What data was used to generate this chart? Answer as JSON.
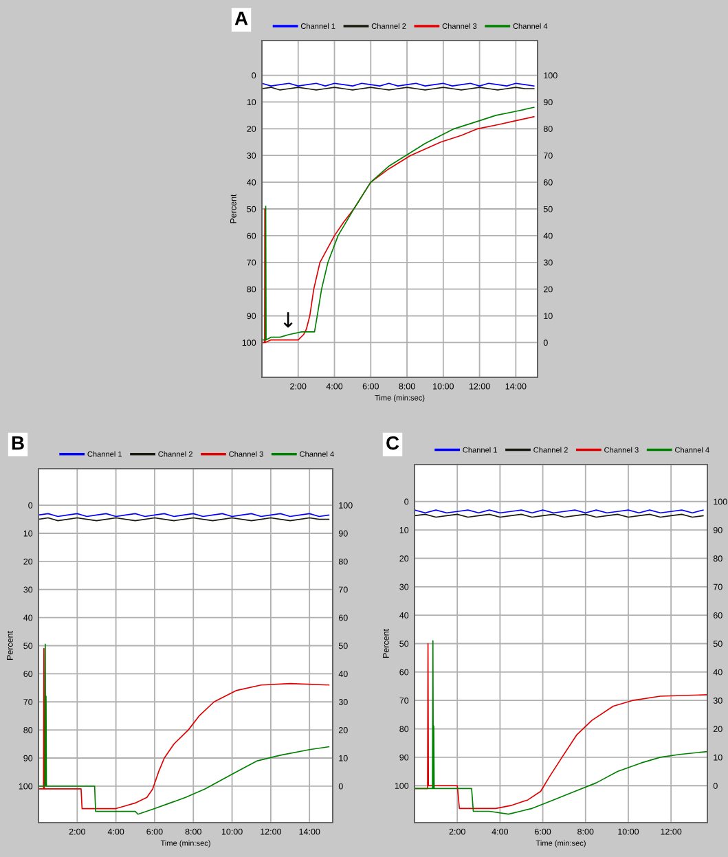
{
  "chart_data": [
    {
      "type": "line",
      "title": "A",
      "xlabel": "Time (min:sec)",
      "ylabel": "Percent",
      "legend": "top",
      "grid": true,
      "line_style": "solid",
      "xlim": [
        0,
        15.2
      ],
      "xticks": [
        {
          "value": 2,
          "label": "2:00"
        },
        {
          "value": 4,
          "label": "4:00"
        },
        {
          "value": 6,
          "label": "6:00"
        },
        {
          "value": 8,
          "label": "8:00"
        },
        {
          "value": 10,
          "label": "10:00"
        },
        {
          "value": 12,
          "label": "12:00"
        },
        {
          "value": 14,
          "label": "14:00"
        }
      ],
      "ylim": [
        113,
        -13
      ],
      "yticks": [
        0,
        10,
        20,
        30,
        40,
        50,
        60,
        70,
        80,
        90,
        100
      ],
      "y2lim": [
        -13,
        113
      ],
      "y2ticks": [
        0,
        10,
        20,
        30,
        40,
        50,
        60,
        70,
        80,
        90,
        100
      ],
      "x": [
        0,
        0.5,
        1,
        1.5,
        2,
        2.5,
        3,
        3.5,
        4,
        4.5,
        5,
        5.5,
        6,
        6.5,
        7,
        7.5,
        8,
        8.5,
        9,
        9.5,
        10,
        10.5,
        11,
        11.5,
        12,
        12.5,
        13,
        13.5,
        14,
        14.5,
        15
      ],
      "annotations": [
        "↓"
      ],
      "series": [
        {
          "name": "Channel 1",
          "color": "#0000ff",
          "values": [
            3,
            4,
            3.5,
            3,
            4,
            3.5,
            3,
            4,
            3,
            3.5,
            4,
            3,
            3.5,
            4,
            3,
            4,
            3.5,
            3,
            4,
            3.5,
            3,
            4,
            3.5,
            3,
            4,
            3,
            3.5,
            4,
            3,
            3.5,
            4
          ]
        },
        {
          "name": "Channel 2",
          "color": "#1a1a10",
          "values": [
            5,
            4.5,
            5.5,
            5,
            4.5,
            5,
            5.5,
            5,
            4.5,
            5,
            5.5,
            5,
            4.5,
            5,
            5.5,
            5,
            4.5,
            5,
            5.5,
            5,
            4.5,
            5,
            5.5,
            5,
            4.5,
            5,
            5.5,
            5,
            4.5,
            5,
            5
          ]
        },
        {
          "name": "Channel 3",
          "color": "#e00000",
          "x": [
            0,
            0.15,
            0.16,
            0.18,
            0.5,
            1,
            1.5,
            2,
            2.3,
            2.45,
            2.64,
            2.86,
            3.2,
            3.6,
            4,
            4.5,
            5.07,
            6,
            7,
            8.2,
            9.86,
            11,
            11.9,
            13,
            14,
            15
          ],
          "values": [
            100,
            100,
            50,
            100,
            99,
            99,
            99,
            99,
            97,
            95,
            90,
            80,
            70,
            65,
            60,
            55,
            50,
            40,
            35,
            30,
            25,
            22.5,
            20,
            18.5,
            17,
            15.5
          ]
        },
        {
          "name": "Channel 4",
          "color": "#008000",
          "x": [
            0,
            0.2,
            0.21,
            0.23,
            0.5,
            1,
            1.5,
            2.2,
            2.9,
            3.05,
            3.29,
            3.64,
            4.2,
            5.07,
            6,
            7,
            7.94,
            9,
            10.6,
            12,
            12.9,
            14,
            15
          ],
          "values": [
            99,
            99,
            49,
            99,
            98,
            98,
            97,
            96,
            96,
            90,
            80,
            70,
            60,
            50,
            40,
            34,
            30,
            25.5,
            20,
            17,
            15,
            13.5,
            12
          ]
        }
      ]
    },
    {
      "type": "line",
      "title": "B",
      "xlabel": "Time (min:sec)",
      "ylabel": "Percent",
      "legend": "top",
      "grid": true,
      "line_style": "solid",
      "xlim": [
        0,
        15.2
      ],
      "xticks": [
        {
          "value": 2,
          "label": "2:00"
        },
        {
          "value": 4,
          "label": "4:00"
        },
        {
          "value": 6,
          "label": "6:00"
        },
        {
          "value": 8,
          "label": "8:00"
        },
        {
          "value": 10,
          "label": "10:00"
        },
        {
          "value": 12,
          "label": "12:00"
        },
        {
          "value": 14,
          "label": "14:00"
        }
      ],
      "ylim": [
        113,
        -13
      ],
      "yticks": [
        0,
        10,
        20,
        30,
        40,
        50,
        60,
        70,
        80,
        90,
        100
      ],
      "y2lim": [
        -13,
        113
      ],
      "y2ticks": [
        0,
        10,
        20,
        30,
        40,
        50,
        60,
        70,
        80,
        90,
        100
      ],
      "x": [
        0,
        0.5,
        1,
        1.5,
        2,
        2.5,
        3,
        3.5,
        4,
        4.5,
        5,
        5.5,
        6,
        6.5,
        7,
        7.5,
        8,
        8.5,
        9,
        9.5,
        10,
        10.5,
        11,
        11.5,
        12,
        12.5,
        13,
        13.5,
        14,
        14.5,
        15
      ],
      "series": [
        {
          "name": "Channel 1",
          "color": "#0000ff",
          "values": [
            3.5,
            3,
            4,
            3.5,
            3,
            4,
            3.5,
            3,
            4,
            3.5,
            3,
            4,
            3.5,
            3,
            4,
            3.5,
            3,
            4,
            3.5,
            3,
            4,
            3.5,
            3,
            4,
            3.5,
            3,
            4,
            3.5,
            3,
            4,
            3.5
          ]
        },
        {
          "name": "Channel 2",
          "color": "#1a1a10",
          "values": [
            5,
            4.5,
            5.5,
            5,
            4.5,
            5,
            5.5,
            5,
            4.5,
            5,
            5.5,
            5,
            4.5,
            5,
            5.5,
            5,
            4.5,
            5,
            5.5,
            5,
            4.5,
            5,
            5.5,
            5,
            4.5,
            5,
            5.5,
            5,
            4.5,
            5,
            5
          ]
        },
        {
          "name": "Channel 3",
          "color": "#e00000",
          "x": [
            0,
            0.26,
            0.28,
            0.3,
            1,
            2.2,
            2.25,
            3,
            4,
            4.5,
            5,
            5.6,
            5.9,
            6.2,
            6.5,
            7,
            7.74,
            8.3,
            9.07,
            10.2,
            11.5,
            13,
            15
          ],
          "values": [
            101,
            101,
            51,
            101,
            101,
            101,
            108,
            108,
            108,
            107,
            106,
            104,
            101,
            95,
            90,
            85,
            80,
            75,
            70,
            66,
            64,
            63.5,
            64
          ]
        },
        {
          "name": "Channel 4",
          "color": "#008000",
          "x": [
            0,
            0.33,
            0.35,
            0.37,
            0.39,
            0.41,
            1,
            2,
            2.9,
            2.95,
            4,
            5,
            5.14,
            6,
            6.8,
            7.6,
            8.6,
            9.4,
            10.2,
            11.3,
            12.5,
            14,
            15
          ],
          "values": [
            100,
            100,
            49.5,
            100,
            68,
            100,
            100,
            100,
            100,
            109,
            109,
            109,
            110,
            108,
            106,
            104,
            101,
            98,
            95,
            91,
            89,
            87,
            86
          ]
        }
      ]
    },
    {
      "type": "line",
      "title": "C",
      "xlabel": "Time (min:sec)",
      "ylabel": "Percent",
      "legend": "top",
      "grid": true,
      "line_style": "solid",
      "xlim": [
        0,
        13.7
      ],
      "xticks": [
        {
          "value": 2,
          "label": "2:00"
        },
        {
          "value": 4,
          "label": "4:00"
        },
        {
          "value": 6,
          "label": "6:00"
        },
        {
          "value": 8,
          "label": "8:00"
        },
        {
          "value": 10,
          "label": "10:00"
        },
        {
          "value": 12,
          "label": "12:00"
        }
      ],
      "ylim": [
        113,
        -13
      ],
      "yticks": [
        0,
        10,
        20,
        30,
        40,
        50,
        60,
        70,
        80,
        90,
        100
      ],
      "y2lim": [
        -13,
        113
      ],
      "y2ticks": [
        0,
        10,
        20,
        30,
        40,
        50,
        60,
        70,
        80,
        90,
        100
      ],
      "x": [
        0,
        0.5,
        1,
        1.5,
        2,
        2.5,
        3,
        3.5,
        4,
        4.5,
        5,
        5.5,
        6,
        6.5,
        7,
        7.5,
        8,
        8.5,
        9,
        9.5,
        10,
        10.5,
        11,
        11.5,
        12,
        12.5,
        13,
        13.5
      ],
      "series": [
        {
          "name": "Channel 1",
          "color": "#0000ff",
          "values": [
            3,
            4,
            3,
            4,
            3.5,
            3,
            4,
            3,
            4,
            3.5,
            3,
            4,
            3,
            4,
            3.5,
            3,
            4,
            3,
            4,
            3.5,
            3,
            4,
            3,
            4,
            3.5,
            3,
            4,
            3
          ]
        },
        {
          "name": "Channel 2",
          "color": "#1a1a10",
          "values": [
            5,
            4.5,
            5.5,
            5,
            4.5,
            5.5,
            5,
            4.5,
            5.5,
            5,
            4.5,
            5.5,
            5,
            4.5,
            5.5,
            5,
            4.5,
            5.5,
            5,
            4.5,
            5.5,
            5,
            4.5,
            5.5,
            5,
            4.5,
            5.5,
            5
          ]
        },
        {
          "name": "Channel 3",
          "color": "#e00000",
          "x": [
            0,
            0.61,
            0.63,
            0.65,
            1,
            2,
            2.1,
            3,
            3.8,
            4.5,
            5.3,
            5.9,
            6.3,
            6.9,
            7.6,
            8.3,
            9.3,
            10.2,
            11.5,
            13.7
          ],
          "values": [
            101,
            101,
            50,
            100,
            100,
            100,
            108,
            108,
            108,
            107,
            105,
            102,
            97,
            90,
            82,
            77,
            72,
            70,
            68.5,
            68
          ]
        },
        {
          "name": "Channel 4",
          "color": "#008000",
          "x": [
            0,
            0.84,
            0.86,
            0.88,
            0.9,
            0.92,
            1.5,
            2.67,
            2.75,
            3.5,
            4.4,
            5.5,
            6.5,
            7.5,
            8.5,
            9.5,
            10.6,
            11.5,
            12.4,
            13.7
          ],
          "values": [
            101,
            101,
            49,
            101,
            79,
            101,
            101,
            101,
            109,
            109,
            110,
            108,
            105,
            102,
            99,
            95,
            92,
            90,
            89,
            88
          ]
        }
      ]
    }
  ]
}
